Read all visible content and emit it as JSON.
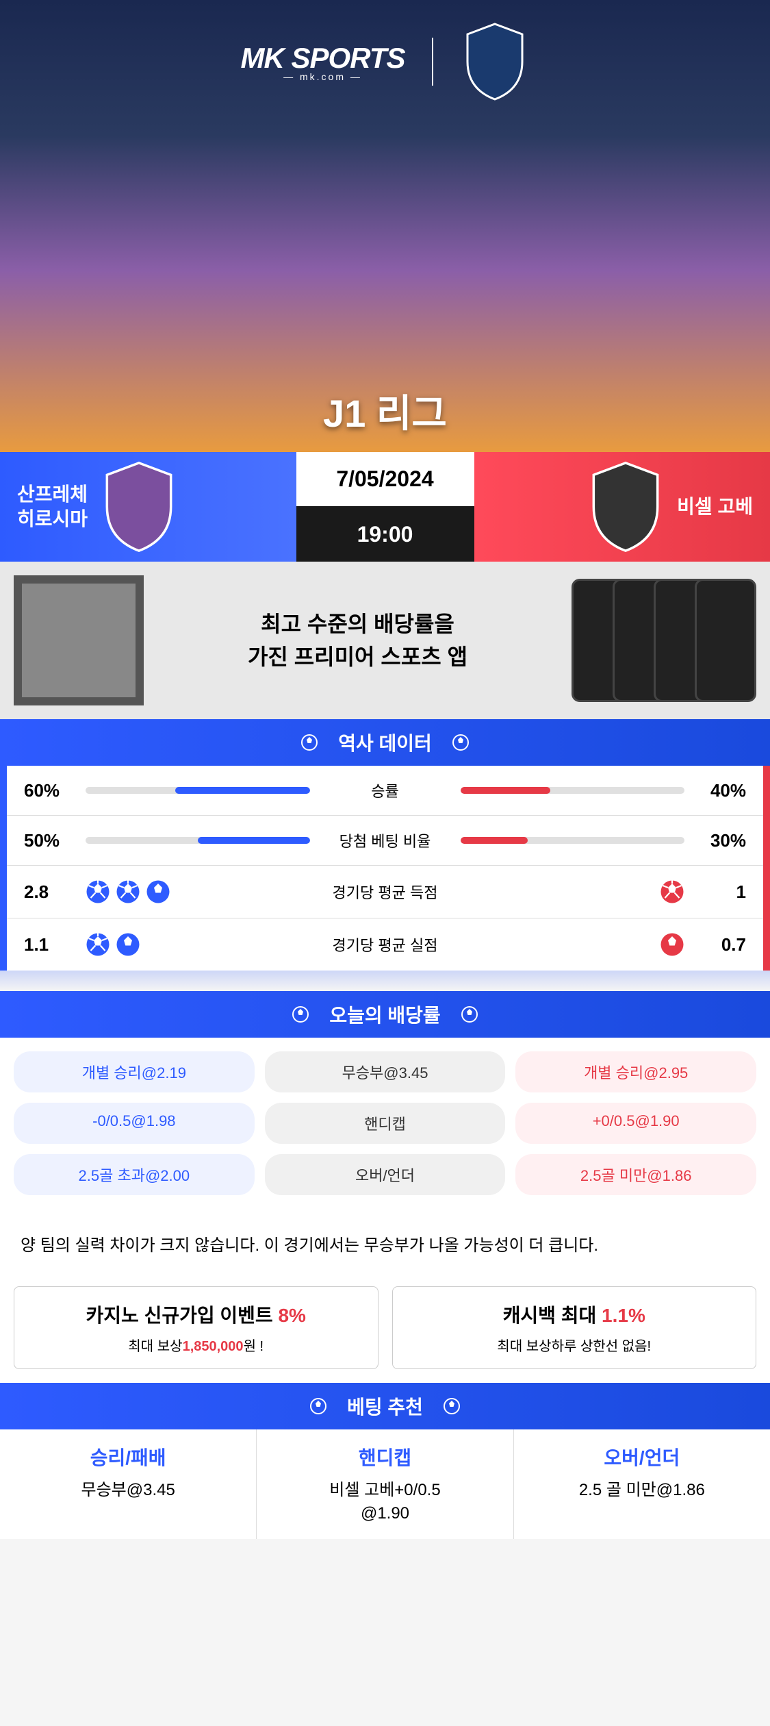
{
  "hero": {
    "logo_main": "MK SPORTS",
    "logo_sub": "— mk.com —",
    "league_title": "J1 리그"
  },
  "match": {
    "team_left": "산프레체\n히로시마",
    "team_right": "비셀 고베",
    "date": "7/05/2024",
    "time": "19:00",
    "colors": {
      "left": "#2e5bff",
      "right": "#e63946"
    }
  },
  "promo": {
    "text": "최고 수준의 배당률을\n가진 프리미어 스포츠 앱"
  },
  "sections": {
    "history": "역사 데이터",
    "odds": "오늘의 배당률",
    "recommend": "베팅 추천"
  },
  "stats": [
    {
      "left_val": "60%",
      "left_pct": 60,
      "label": "승률",
      "right_pct": 40,
      "right_val": "40%",
      "type": "bar"
    },
    {
      "left_val": "50%",
      "left_pct": 50,
      "label": "당첨 베팅 비율",
      "right_pct": 30,
      "right_val": "30%",
      "type": "bar"
    },
    {
      "left_val": "2.8",
      "left_balls": 2.8,
      "label": "경기당 평균 득점",
      "right_balls": 1,
      "right_val": "1",
      "type": "balls"
    },
    {
      "left_val": "1.1",
      "left_balls": 1.1,
      "label": "경기당 평균 실점",
      "right_balls": 0.7,
      "right_val": "0.7",
      "type": "balls"
    }
  ],
  "odds": [
    {
      "left": "개별 승리@2.19",
      "center": "무승부@3.45",
      "right": "개별 승리@2.95"
    },
    {
      "left": "-0/0.5@1.98",
      "center": "핸디캡",
      "right": "+0/0.5@1.90"
    },
    {
      "left": "2.5골 초과@2.00",
      "center": "오버/언더",
      "right": "2.5골 미만@1.86"
    }
  ],
  "analysis": "양 팀의 실력 차이가 크지 않습니다. 이 경기에서는 무승부가 나올 가능성이 더 큽니다.",
  "bonuses": [
    {
      "title": "카지노 신규가입 이벤트 ",
      "pct": "8%",
      "sub_prefix": "최대 보상",
      "amount": "1,850,000",
      "sub_suffix": "원 !"
    },
    {
      "title": "캐시백 최대 ",
      "pct": "1.1%",
      "sub_prefix": "최대 보상",
      "amount": "",
      "sub_suffix": "하루 상한선 없음!"
    }
  ],
  "recommendations": [
    {
      "title": "승리/패배",
      "value": "무승부@3.45"
    },
    {
      "title": "핸디캡",
      "value": "비셀 고베+0/0.5\n@1.90"
    },
    {
      "title": "오버/언더",
      "value": "2.5 골 미만@1.86"
    }
  ]
}
